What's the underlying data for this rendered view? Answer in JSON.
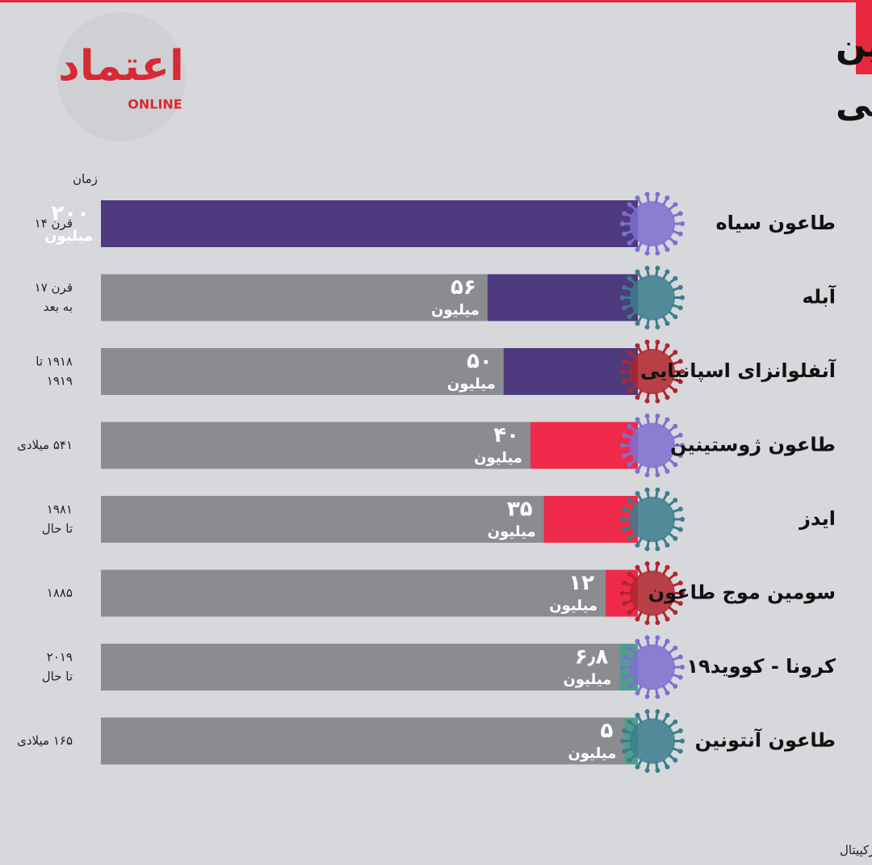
{
  "logo": {
    "text": "اعتماد",
    "subtext": "ONLINE"
  },
  "chart_data": {
    "type": "hbar",
    "title_lines": [
      "مرگبارترین",
      "همه‌گیری های جهانی"
    ],
    "period_header": "زمان",
    "categories": [
      "طاعون سیاه",
      "آبله",
      "آنفلوانزای اسپانیایی",
      "طاعون ژوستینین",
      "ایدز",
      "سومین موج طاعون",
      "کرونا - کووید۱۹",
      "طاعون آنتونین"
    ],
    "periods": [
      [
        "قرن ۱۴"
      ],
      [
        "قرن ۱۷",
        "به بعد"
      ],
      [
        "۱۹۱۸ تا",
        "۱۹۱۹"
      ],
      [
        "۵۴۱ میلادی"
      ],
      [
        "۱۹۸۱",
        "تا حال"
      ],
      [
        "۱۸۸۵"
      ],
      [
        "۲۰۱۹",
        "تا حال"
      ],
      [
        "۱۶۵ میلادی"
      ]
    ],
    "values": [
      200,
      56,
      50,
      40,
      35,
      12,
      6.8,
      5
    ],
    "value_labels": [
      "۲۰۰",
      "۵۶",
      "۵۰",
      "۴۰",
      "۳۵",
      "۱۲",
      "۶٫۸",
      "۵"
    ],
    "unit_label": "میلیون",
    "colors": [
      "#4e3a7e",
      "#4e3a7e",
      "#4e3a7e",
      "#f02a4b",
      "#f02a4b",
      "#f02a4b",
      "#4f9f8a",
      "#4f9f8a"
    ],
    "track_color": "#8b8c91",
    "xlim": [
      0,
      200
    ],
    "source": "منبع: ویژکپیتال"
  }
}
